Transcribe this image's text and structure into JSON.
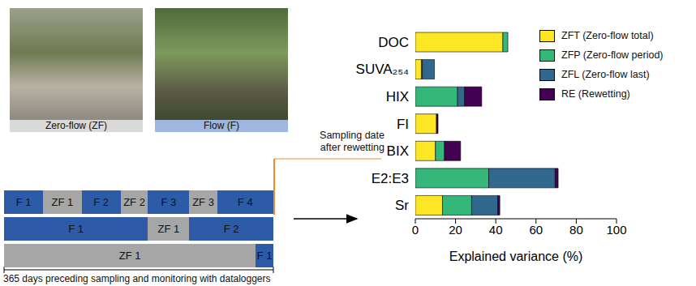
{
  "photos": [
    {
      "label": "Zero-flow (ZF)"
    },
    {
      "label": "Flow (F)"
    }
  ],
  "annotation": [
    "Sampling date",
    "after rewetting"
  ],
  "timeline": {
    "total_days": 365,
    "caption": "365 days preceding sampling and monitoring with dataloggers",
    "rows": [
      [
        {
          "label": "F 1",
          "state": "F",
          "days": 53
        },
        {
          "label": "ZF 1",
          "state": "ZF",
          "days": 52
        },
        {
          "label": "F 2",
          "state": "F",
          "days": 53
        },
        {
          "label": "ZF 2",
          "state": "ZF",
          "days": 37
        },
        {
          "label": "F 3",
          "state": "F",
          "days": 56
        },
        {
          "label": "ZF 3",
          "state": "ZF",
          "days": 38
        },
        {
          "label": "F 4",
          "state": "F",
          "days": 76
        }
      ],
      [
        {
          "label": "F 1",
          "state": "F",
          "days": 195
        },
        {
          "label": "ZF 1",
          "state": "ZF",
          "days": 56
        },
        {
          "label": "F 2",
          "state": "F",
          "days": 114
        }
      ],
      [
        {
          "label": "ZF 1",
          "state": "ZF",
          "days": 341
        },
        {
          "label": "F 1",
          "state": "F",
          "days": 24
        }
      ]
    ]
  },
  "chart_data": {
    "type": "bar",
    "orientation": "horizontal",
    "stacked": true,
    "grid": false,
    "legend": "upper right",
    "categories": [
      "DOC",
      "SUVA₂₅₄",
      "HIX",
      "FI",
      "BIX",
      "E2:E3",
      "Sr"
    ],
    "series": [
      {
        "name": "ZFT (Zero-flow total)",
        "color": "#fde725",
        "values": [
          43.5,
          3,
          0,
          10.5,
          10,
          0,
          13.5
        ]
      },
      {
        "name": "ZFP (Zero-flow period)",
        "color": "#35b779",
        "values": [
          2.5,
          0.5,
          21,
          0,
          4.5,
          36.5,
          14.5
        ]
      },
      {
        "name": "ZFL (Zero-flow last)",
        "color": "#31688e",
        "values": [
          0,
          6,
          3.5,
          0,
          0,
          33,
          13
        ]
      },
      {
        "name": "RE (Rewetting)",
        "color": "#440154",
        "values": [
          0,
          0,
          8.5,
          0.8,
          8,
          1.5,
          1
        ]
      }
    ],
    "x_label": "Explained variance (%)",
    "xlim": [
      0,
      100
    ],
    "xticks": [
      0,
      20,
      40,
      60,
      80,
      100
    ]
  }
}
